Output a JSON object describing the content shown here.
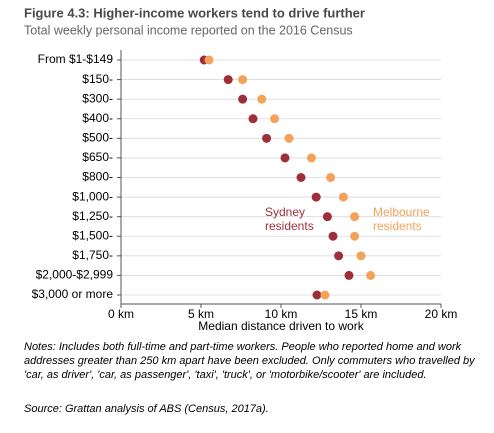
{
  "chart_data": {
    "type": "dot",
    "title": "Figure 4.3: Higher-income workers tend to drive further",
    "subtitle": "Total weekly personal income reported on the 2016 Census",
    "xlabel": "Median distance driven to work",
    "categories": [
      "From $1-$149",
      "$150-",
      "$300-",
      "$400-",
      "$500-",
      "$650-",
      "$800-",
      "$1,000-",
      "$1,250-",
      "$1,500-",
      "$1,750-",
      "$2,000-$2,999",
      "$3,000 or more"
    ],
    "series": [
      {
        "name": "Sydney residents",
        "color": "#9e2f3a",
        "values": [
          5.2,
          6.7,
          7.6,
          8.25,
          9.1,
          10.25,
          11.25,
          12.2,
          12.9,
          13.25,
          13.6,
          14.25,
          12.25
        ]
      },
      {
        "name": "Melbourne residents",
        "color": "#f4a259",
        "values": [
          5.5,
          7.6,
          8.8,
          9.6,
          10.5,
          11.9,
          13.1,
          13.9,
          14.6,
          14.6,
          15.0,
          15.6,
          12.75
        ]
      }
    ],
    "xlim": [
      0,
      20
    ],
    "xticks": [
      {
        "value": 0,
        "label": "0 km"
      },
      {
        "value": 5,
        "label": "5 km"
      },
      {
        "value": 10,
        "label": "10 km"
      },
      {
        "value": 15,
        "label": "15 km"
      },
      {
        "value": 20,
        "label": "20 km"
      }
    ],
    "notes": "Notes: Includes both full-time and part-time workers. People who reported home and work addresses greater than 250 km apart have been excluded. Only commuters who travelled by 'car, as driver', 'car, as passenger', 'taxi', 'truck', or 'motorbike/scooter' are included.",
    "source": "Source: Grattan analysis of ABS (Census, 2017a)."
  }
}
